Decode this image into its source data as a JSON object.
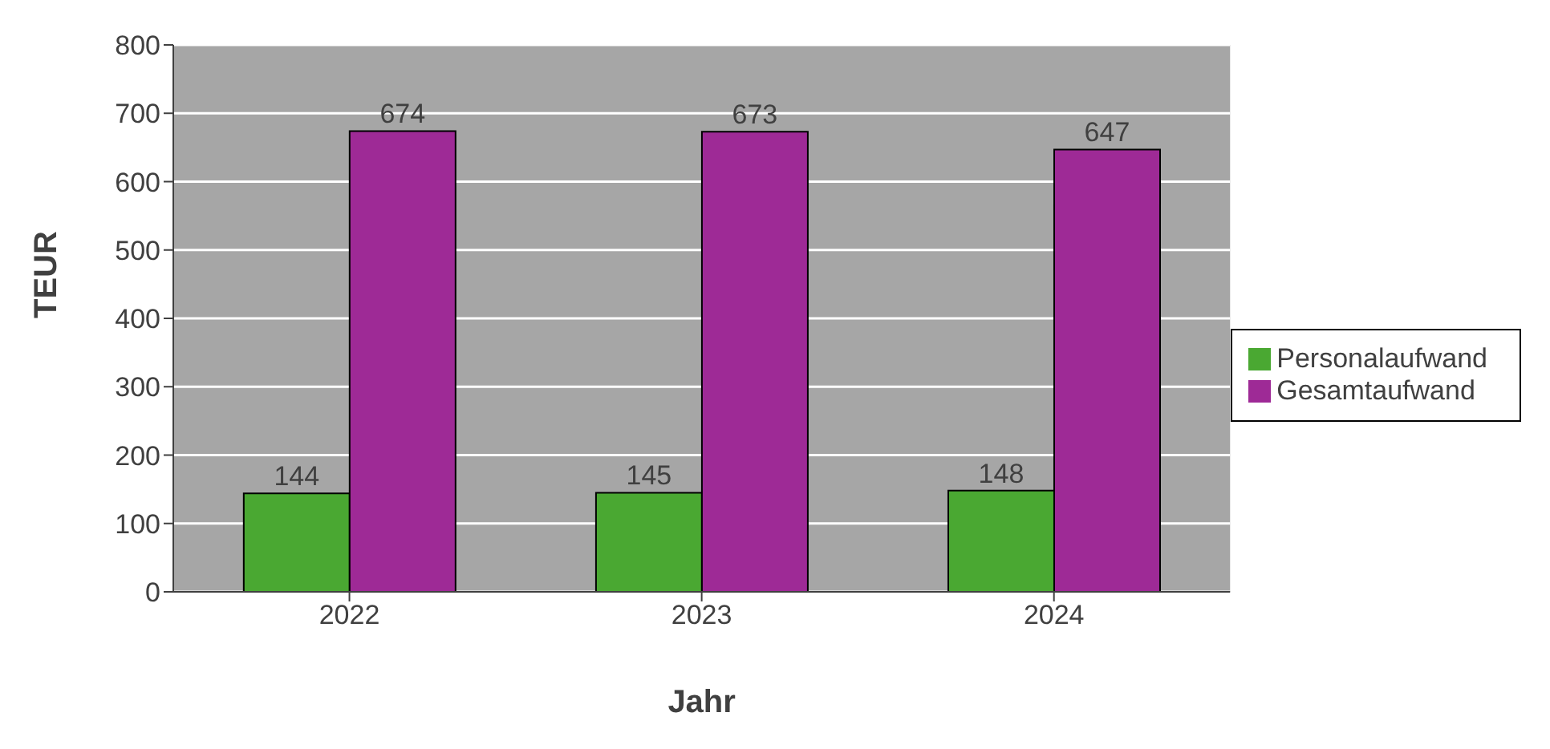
{
  "chart_data": {
    "type": "bar",
    "xlabel": "Jahr",
    "ylabel": "TEUR",
    "categories": [
      "2022",
      "2023",
      "2024"
    ],
    "series": [
      {
        "name": "Personalaufwand",
        "color": "#4aa832",
        "values": [
          144,
          145,
          148
        ]
      },
      {
        "name": "Gesamtaufwand",
        "color": "#9e2a96",
        "values": [
          674,
          673,
          647
        ]
      }
    ],
    "ylim": [
      0,
      800
    ],
    "yticks": [
      0,
      100,
      200,
      300,
      400,
      500,
      600,
      700,
      800
    ],
    "grid": "y",
    "legend": "right",
    "data_labels": true
  }
}
